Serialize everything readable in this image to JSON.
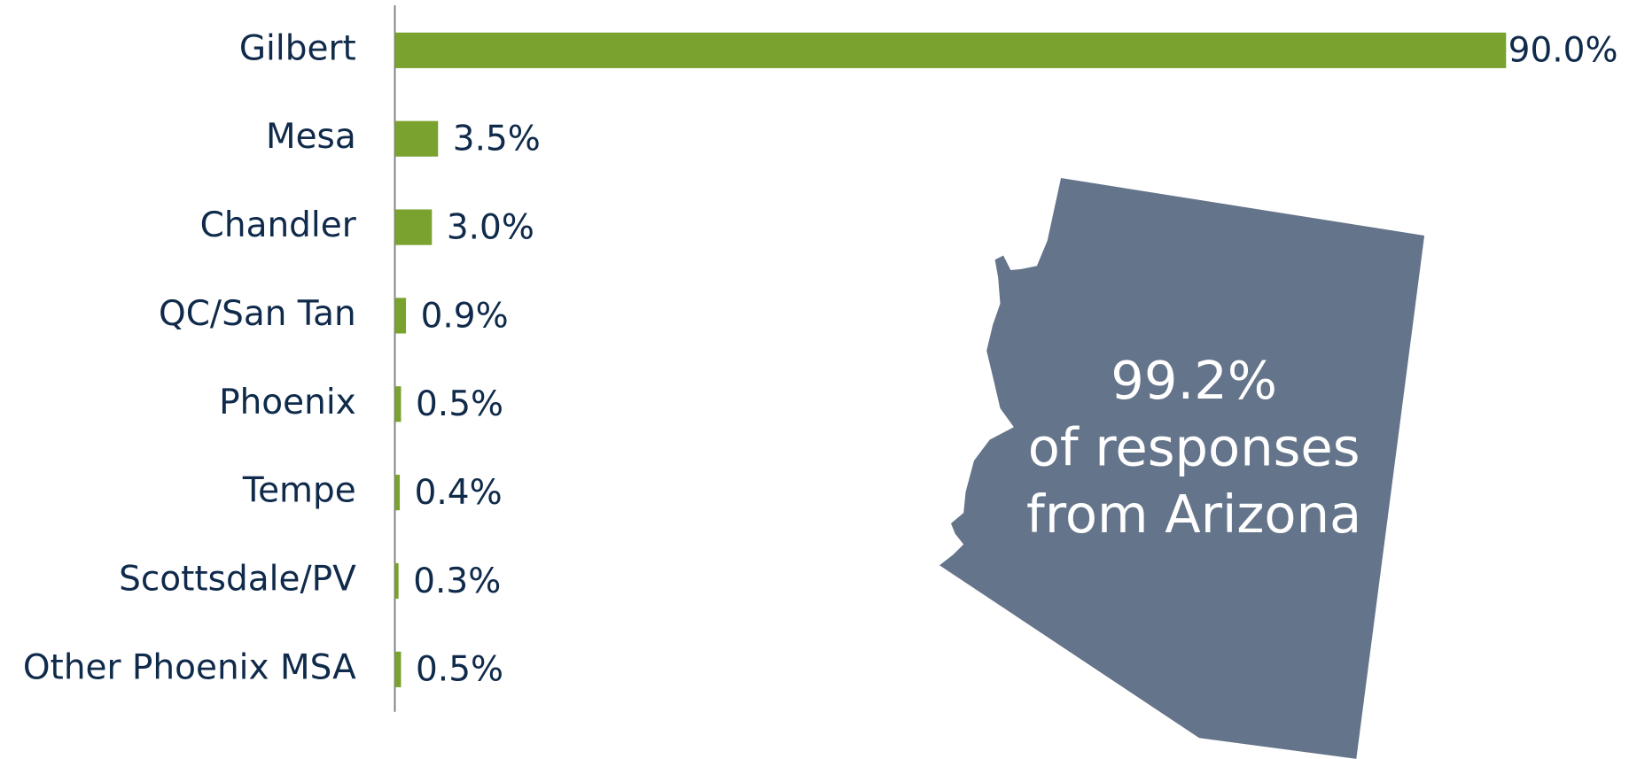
{
  "chart_data": {
    "type": "bar",
    "orientation": "horizontal",
    "categories": [
      "Gilbert",
      "Mesa",
      "Chandler",
      "QC/San Tan",
      "Phoenix",
      "Tempe",
      "Scottsdale/PV",
      "Other Phoenix MSA"
    ],
    "values": [
      90.0,
      3.5,
      3.0,
      0.9,
      0.5,
      0.4,
      0.3,
      0.5
    ],
    "value_labels": [
      "90.0%",
      "3.5%",
      "3.0%",
      "0.9%",
      "0.5%",
      "0.4%",
      "0.3%",
      "0.5%"
    ],
    "color": "#7aa22f",
    "xlim": [
      0,
      90
    ],
    "annotation": [
      "99.2%",
      "of responses",
      "from Arizona"
    ]
  }
}
